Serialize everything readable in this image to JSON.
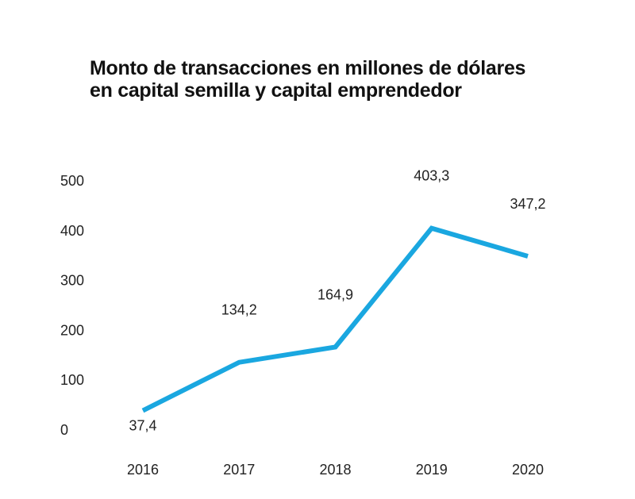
{
  "chart_data": {
    "type": "line",
    "title": "Monto de transacciones en millones de dólares en capital semilla y capital emprendedor",
    "xlabel": "",
    "ylabel": "",
    "categories": [
      "2016",
      "2017",
      "2018",
      "2019",
      "2020"
    ],
    "series": [
      {
        "values": [
          37.4,
          134.2,
          164.9,
          403.3,
          347.2
        ],
        "labels": [
          "37,4",
          "134,2",
          "164,9",
          "403,3",
          "347,2"
        ],
        "color": "#1aa7e0"
      }
    ],
    "yticks": [
      "0",
      "100",
      "200",
      "300",
      "400",
      "500"
    ],
    "ytick_values": [
      0,
      100,
      200,
      300,
      400,
      500
    ],
    "ylim": [
      0,
      500
    ],
    "grid": false,
    "legend": "none"
  }
}
